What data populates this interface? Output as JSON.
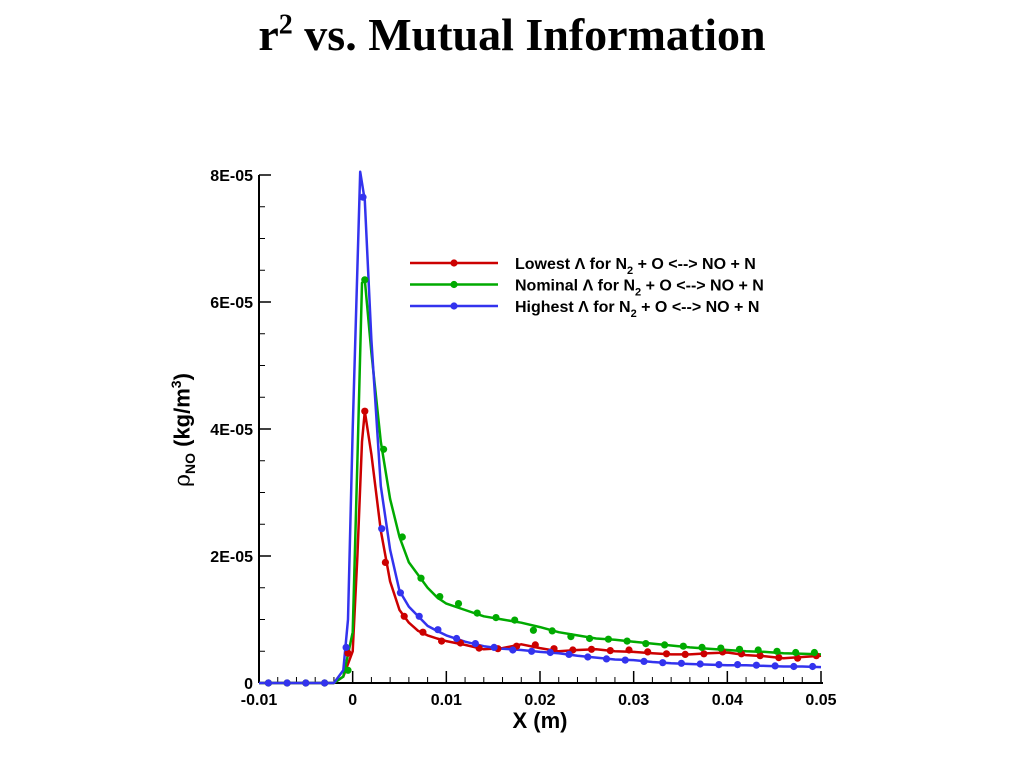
{
  "title": {
    "text": "vs. Mutual Information",
    "base": "r",
    "exp": "2"
  },
  "chart_data": {
    "type": "line",
    "xlabel": "X (m)",
    "ylabel": {
      "symbol": "ρ",
      "sub": "NO",
      "text": " (kg/m",
      "sup": "3",
      "close": ")"
    },
    "xlim": [
      -0.01,
      0.05
    ],
    "ylim": [
      0,
      8e-05
    ],
    "x_ticks": [
      {
        "v": -0.01,
        "label": "-0.01"
      },
      {
        "v": 0,
        "label": "0"
      },
      {
        "v": 0.01,
        "label": "0.01"
      },
      {
        "v": 0.02,
        "label": "0.02"
      },
      {
        "v": 0.03,
        "label": "0.03"
      },
      {
        "v": 0.04,
        "label": "0.04"
      },
      {
        "v": 0.05,
        "label": "0.05"
      }
    ],
    "y_ticks": [
      {
        "v": 0,
        "label": "0"
      },
      {
        "v": 2e-05,
        "label": "2E-05"
      },
      {
        "v": 4e-05,
        "label": "4E-05"
      },
      {
        "v": 6e-05,
        "label": "6E-05"
      },
      {
        "v": 8e-05,
        "label": "8E-05"
      }
    ],
    "legend_position": "top-right",
    "series": [
      {
        "legend": {
          "pre": "Lowest Λ for N",
          "sub": "2",
          "post": " + O <--> NO + N"
        },
        "color": "#cc0000",
        "line": [
          [
            -0.01,
            0
          ],
          [
            -0.002,
            0
          ],
          [
            -0.001,
            1e-06
          ],
          [
            0,
            5e-06
          ],
          [
            0.0005,
            2e-05
          ],
          [
            0.001,
            3.8e-05
          ],
          [
            0.0013,
            4.28e-05
          ],
          [
            0.002,
            3.6e-05
          ],
          [
            0.003,
            2.4e-05
          ],
          [
            0.004,
            1.6e-05
          ],
          [
            0.005,
            1.15e-05
          ],
          [
            0.006,
            9.5e-06
          ],
          [
            0.007,
            8.2e-06
          ],
          [
            0.008,
            7.5e-06
          ],
          [
            0.009,
            7e-06
          ],
          [
            0.01,
            6.6e-06
          ],
          [
            0.012,
            6e-06
          ],
          [
            0.014,
            5.3e-06
          ],
          [
            0.016,
            5.5e-06
          ],
          [
            0.018,
            6.1e-06
          ],
          [
            0.02,
            5.5e-06
          ],
          [
            0.022,
            5e-06
          ],
          [
            0.024,
            5.2e-06
          ],
          [
            0.026,
            5.3e-06
          ],
          [
            0.028,
            5e-06
          ],
          [
            0.03,
            4.9e-06
          ],
          [
            0.032,
            4.7e-06
          ],
          [
            0.034,
            4.5e-06
          ],
          [
            0.036,
            4.5e-06
          ],
          [
            0.038,
            4.7e-06
          ],
          [
            0.04,
            4.8e-06
          ],
          [
            0.042,
            4.4e-06
          ],
          [
            0.044,
            4.2e-06
          ],
          [
            0.046,
            3.9e-06
          ],
          [
            0.048,
            4.1e-06
          ],
          [
            0.05,
            4.3e-06
          ]
        ],
        "points": [
          [
            -0.009,
            0
          ],
          [
            -0.007,
            0
          ],
          [
            -0.005,
            0
          ],
          [
            -0.003,
            0
          ],
          [
            -0.0005,
            4.7e-06
          ],
          [
            0.0013,
            4.28e-05
          ],
          [
            0.0035,
            1.9e-05
          ],
          [
            0.0055,
            1.05e-05
          ],
          [
            0.0075,
            8e-06
          ],
          [
            0.0095,
            6.6e-06
          ],
          [
            0.0115,
            6.3e-06
          ],
          [
            0.0135,
            5.5e-06
          ],
          [
            0.0155,
            5.4e-06
          ],
          [
            0.0175,
            5.8e-06
          ],
          [
            0.0195,
            6e-06
          ],
          [
            0.0215,
            5.4e-06
          ],
          [
            0.0235,
            5.2e-06
          ],
          [
            0.0255,
            5.3e-06
          ],
          [
            0.0275,
            5.1e-06
          ],
          [
            0.0295,
            5.2e-06
          ],
          [
            0.0315,
            4.9e-06
          ],
          [
            0.0335,
            4.6e-06
          ],
          [
            0.0355,
            4.5e-06
          ],
          [
            0.0375,
            4.6e-06
          ],
          [
            0.0395,
            4.9e-06
          ],
          [
            0.0415,
            4.6e-06
          ],
          [
            0.0435,
            4.3e-06
          ],
          [
            0.0455,
            4e-06
          ],
          [
            0.0475,
            3.9e-06
          ],
          [
            0.0495,
            4.3e-06
          ]
        ]
      },
      {
        "legend": {
          "pre": "Nominal Λ for N",
          "sub": "2",
          "post": " + O <--> NO + N"
        },
        "color": "#00aa00",
        "line": [
          [
            -0.01,
            0
          ],
          [
            -0.002,
            0
          ],
          [
            -0.001,
            1e-06
          ],
          [
            0,
            8e-06
          ],
          [
            0.0005,
            3.5e-05
          ],
          [
            0.001,
            6.3e-05
          ],
          [
            0.0013,
            6.35e-05
          ],
          [
            0.002,
            5.2e-05
          ],
          [
            0.003,
            3.8e-05
          ],
          [
            0.004,
            2.9e-05
          ],
          [
            0.005,
            2.3e-05
          ],
          [
            0.006,
            1.9e-05
          ],
          [
            0.007,
            1.7e-05
          ],
          [
            0.008,
            1.5e-05
          ],
          [
            0.009,
            1.35e-05
          ],
          [
            0.01,
            1.25e-05
          ],
          [
            0.012,
            1.15e-05
          ],
          [
            0.014,
            1.05e-05
          ],
          [
            0.016,
            1e-05
          ],
          [
            0.018,
            9.5e-06
          ],
          [
            0.02,
            8.8e-06
          ],
          [
            0.022,
            8e-06
          ],
          [
            0.024,
            7.5e-06
          ],
          [
            0.026,
            7e-06
          ],
          [
            0.028,
            6.8e-06
          ],
          [
            0.03,
            6.5e-06
          ],
          [
            0.032,
            6.2e-06
          ],
          [
            0.034,
            5.9e-06
          ],
          [
            0.036,
            5.6e-06
          ],
          [
            0.038,
            5.4e-06
          ],
          [
            0.04,
            5.2e-06
          ],
          [
            0.042,
            5e-06
          ],
          [
            0.044,
            4.9e-06
          ],
          [
            0.046,
            4.7e-06
          ],
          [
            0.048,
            4.6e-06
          ],
          [
            0.05,
            4.5e-06
          ]
        ],
        "points": [
          [
            -0.009,
            0
          ],
          [
            -0.007,
            0
          ],
          [
            -0.005,
            0
          ],
          [
            -0.003,
            0
          ],
          [
            -0.0005,
            2e-06
          ],
          [
            0.0013,
            6.35e-05
          ],
          [
            0.0033,
            3.68e-05
          ],
          [
            0.0053,
            2.3e-05
          ],
          [
            0.0073,
            1.65e-05
          ],
          [
            0.0093,
            1.36e-05
          ],
          [
            0.0113,
            1.25e-05
          ],
          [
            0.0133,
            1.1e-05
          ],
          [
            0.0153,
            1.03e-05
          ],
          [
            0.0173,
            9.9e-06
          ],
          [
            0.0193,
            8.3e-06
          ],
          [
            0.0213,
            8.2e-06
          ],
          [
            0.0233,
            7.3e-06
          ],
          [
            0.0253,
            7e-06
          ],
          [
            0.0273,
            6.9e-06
          ],
          [
            0.0293,
            6.6e-06
          ],
          [
            0.0313,
            6.2e-06
          ],
          [
            0.0333,
            6e-06
          ],
          [
            0.0353,
            5.8e-06
          ],
          [
            0.0373,
            5.6e-06
          ],
          [
            0.0393,
            5.5e-06
          ],
          [
            0.0413,
            5.3e-06
          ],
          [
            0.0433,
            5.2e-06
          ],
          [
            0.0453,
            5e-06
          ],
          [
            0.0473,
            4.8e-06
          ],
          [
            0.0493,
            4.8e-06
          ]
        ]
      },
      {
        "legend": {
          "pre": "Highest Λ for N",
          "sub": "2",
          "post": " + O <--> NO + N"
        },
        "color": "#3333ee",
        "line": [
          [
            -0.01,
            0
          ],
          [
            -0.002,
            0
          ],
          [
            -0.001,
            2e-06
          ],
          [
            -0.0005,
            1e-05
          ],
          [
            0,
            4e-05
          ],
          [
            0.0008,
            8.05e-05
          ],
          [
            0.0013,
            7.6e-05
          ],
          [
            0.002,
            5.4e-05
          ],
          [
            0.003,
            3.1e-05
          ],
          [
            0.004,
            2.1e-05
          ],
          [
            0.005,
            1.45e-05
          ],
          [
            0.006,
            1.2e-05
          ],
          [
            0.007,
            1.05e-05
          ],
          [
            0.008,
            9e-06
          ],
          [
            0.009,
            8.2e-06
          ],
          [
            0.01,
            7.5e-06
          ],
          [
            0.012,
            6.5e-06
          ],
          [
            0.014,
            5.8e-06
          ],
          [
            0.016,
            5.4e-06
          ],
          [
            0.018,
            5.2e-06
          ],
          [
            0.02,
            4.9e-06
          ],
          [
            0.022,
            4.7e-06
          ],
          [
            0.024,
            4.3e-06
          ],
          [
            0.026,
            4e-06
          ],
          [
            0.028,
            3.7e-06
          ],
          [
            0.03,
            3.6e-06
          ],
          [
            0.032,
            3.3e-06
          ],
          [
            0.034,
            3.1e-06
          ],
          [
            0.036,
            3e-06
          ],
          [
            0.038,
            2.9e-06
          ],
          [
            0.04,
            2.8e-06
          ],
          [
            0.042,
            2.8e-06
          ],
          [
            0.044,
            2.7e-06
          ],
          [
            0.046,
            2.6e-06
          ],
          [
            0.048,
            2.6e-06
          ],
          [
            0.05,
            2.5e-06
          ]
        ],
        "points": [
          [
            -0.009,
            0
          ],
          [
            -0.007,
            0
          ],
          [
            -0.005,
            0
          ],
          [
            -0.003,
            0
          ],
          [
            -0.0007,
            5.6e-06
          ],
          [
            0.0011,
            7.65e-05
          ],
          [
            0.0031,
            2.43e-05
          ],
          [
            0.0051,
            1.42e-05
          ],
          [
            0.0071,
            1.05e-05
          ],
          [
            0.0091,
            8.4e-06
          ],
          [
            0.0111,
            7e-06
          ],
          [
            0.0131,
            6.2e-06
          ],
          [
            0.0151,
            5.6e-06
          ],
          [
            0.0171,
            5.2e-06
          ],
          [
            0.0191,
            5e-06
          ],
          [
            0.0211,
            4.8e-06
          ],
          [
            0.0231,
            4.5e-06
          ],
          [
            0.0251,
            4.1e-06
          ],
          [
            0.0271,
            3.8e-06
          ],
          [
            0.0291,
            3.6e-06
          ],
          [
            0.0311,
            3.4e-06
          ],
          [
            0.0331,
            3.2e-06
          ],
          [
            0.0351,
            3.1e-06
          ],
          [
            0.0371,
            3e-06
          ],
          [
            0.0391,
            2.9e-06
          ],
          [
            0.0411,
            2.9e-06
          ],
          [
            0.0431,
            2.8e-06
          ],
          [
            0.0451,
            2.7e-06
          ],
          [
            0.0471,
            2.6e-06
          ],
          [
            0.0491,
            2.6e-06
          ]
        ]
      }
    ]
  }
}
